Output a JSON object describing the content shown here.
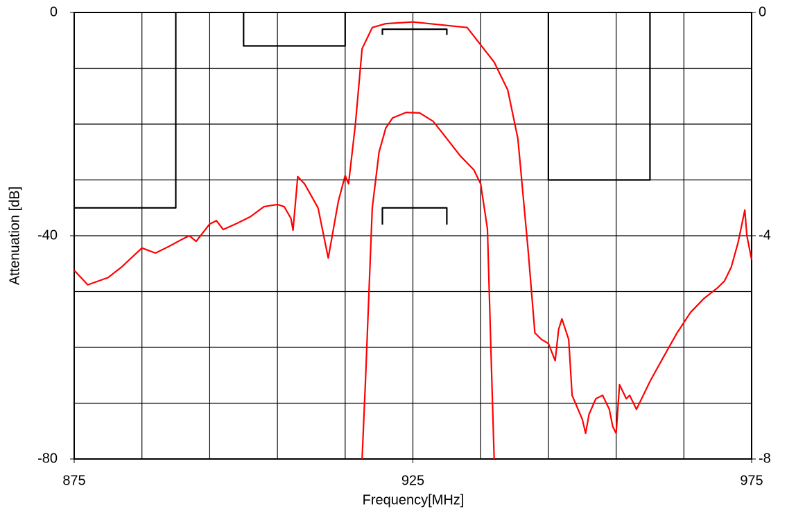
{
  "chart_data": {
    "type": "line",
    "xlabel": "Frequency[MHz]",
    "ylabel": "Attenuation [dB]",
    "xlim": [
      875,
      975
    ],
    "xticks": [
      875,
      925,
      975
    ],
    "ylim": [
      -80,
      0
    ],
    "yticks": [
      0,
      -40,
      -80
    ],
    "y2lim": [
      -8,
      0
    ],
    "y2ticks": [
      0,
      -4,
      -8
    ],
    "xgrid": [
      875,
      885,
      895,
      905,
      915,
      925,
      935,
      945,
      955,
      965,
      975
    ],
    "ygrid": [
      0,
      -10,
      -20,
      -30,
      -40,
      -50,
      -60,
      -70,
      -80
    ],
    "grid": true,
    "series": [
      {
        "color": "#ff0000",
        "x": [
          875,
          877,
          880,
          882,
          885,
          887,
          889,
          891,
          892,
          893,
          895,
          896,
          897,
          899,
          901,
          903,
          905,
          906,
          907,
          907.3,
          908,
          909,
          911,
          912.5,
          914,
          915,
          915.5,
          916.5,
          917.5,
          919,
          921,
          925,
          929,
          933,
          935,
          937,
          939,
          940.5,
          942,
          943,
          944,
          945,
          946,
          946.5,
          947,
          948,
          948.5,
          950,
          950.5,
          951,
          952,
          953,
          954,
          954.5,
          955,
          955.5,
          956.5,
          957,
          958,
          959,
          960,
          962,
          964,
          966,
          968,
          970,
          971,
          972,
          973,
          974,
          974.3,
          975
        ],
        "values": [
          -46.2,
          -48.8,
          -47.5,
          -45.6,
          -42.2,
          -43.1,
          -41.9,
          -40.6,
          -40.0,
          -41.0,
          -37.9,
          -37.3,
          -38.9,
          -37.8,
          -36.6,
          -34.8,
          -34.4,
          -34.8,
          -36.9,
          -39.0,
          -29.4,
          -30.7,
          -35.0,
          -44.0,
          -33.8,
          -29.2,
          -30.7,
          -20.1,
          -6.5,
          -2.7,
          -2.0,
          -1.7,
          -2.2,
          -2.7,
          -5.8,
          -8.9,
          -13.9,
          -22.6,
          -42.5,
          -57.4,
          -58.6,
          -59.3,
          -62.4,
          -56.8,
          -54.9,
          -58.6,
          -68.6,
          -72.9,
          -75.4,
          -72.0,
          -69.2,
          -68.6,
          -71.1,
          -74.2,
          -75.4,
          -66.7,
          -69.2,
          -68.6,
          -71.1,
          -68.6,
          -66.1,
          -61.7,
          -57.4,
          -53.7,
          -51.2,
          -49.3,
          -48.1,
          -45.6,
          -41.2,
          -35.4,
          -40.0,
          -44.3
        ]
      },
      {
        "color": "#ff0000",
        "axis": "y2",
        "x": [
          917.5,
          918,
          919,
          920,
          921,
          922,
          924,
          926,
          928,
          930,
          932,
          934,
          935,
          936,
          936.5,
          937
        ],
        "values": [
          -8,
          -6.6,
          -3.5,
          -2.5,
          -2.07,
          -1.89,
          -1.79,
          -1.8,
          -1.95,
          -2.26,
          -2.57,
          -2.82,
          -3.07,
          -3.88,
          -6.0,
          -8
        ]
      },
      {
        "color": "#000000",
        "x": [
          875,
          890,
          890
        ],
        "values": [
          -35,
          -35,
          0
        ]
      },
      {
        "color": "#000000",
        "x": [
          900,
          900,
          915,
          915
        ],
        "values": [
          0,
          -6,
          -6,
          0
        ]
      },
      {
        "color": "#000000",
        "axis": "y2",
        "x": [
          920.5,
          920.5,
          930,
          930
        ],
        "values": [
          -0.4,
          -0.3,
          -0.3,
          -0.4
        ]
      },
      {
        "color": "#000000",
        "axis": "y2",
        "x": [
          920.5,
          920.5,
          930,
          930
        ],
        "values": [
          -3.8,
          -3.5,
          -3.5,
          -3.8
        ]
      },
      {
        "color": "#000000",
        "x": [
          945,
          945,
          960,
          960
        ],
        "values": [
          0,
          -30,
          -30,
          0
        ]
      }
    ]
  }
}
